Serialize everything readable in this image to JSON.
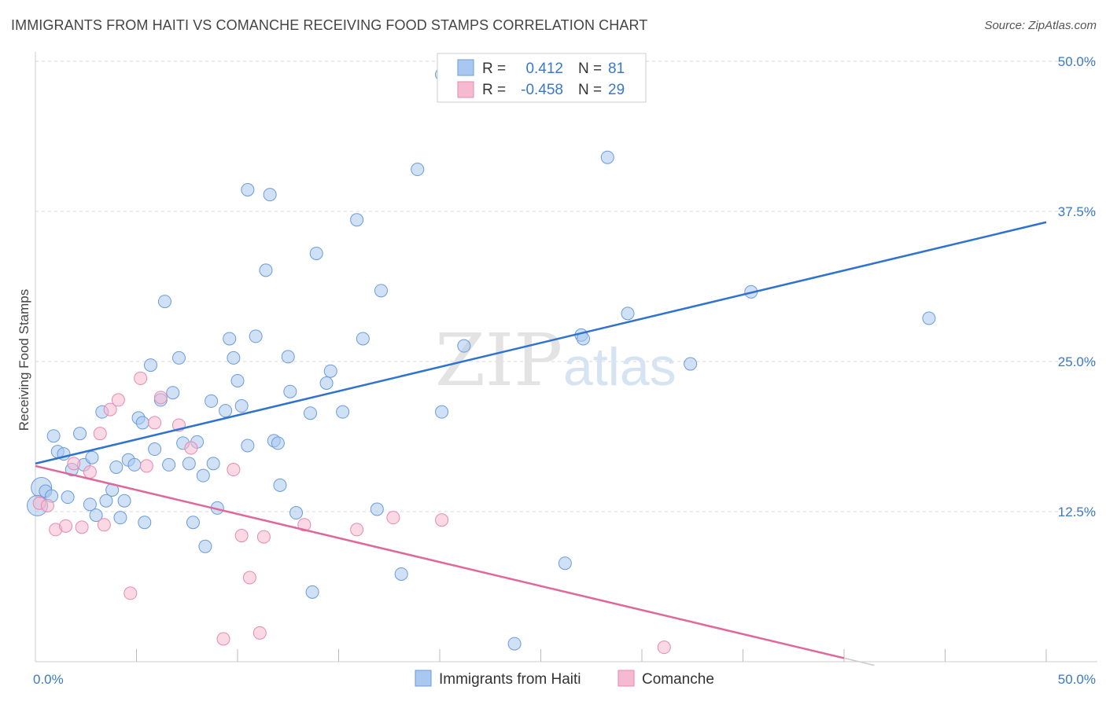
{
  "title": "IMMIGRANTS FROM HAITI VS COMANCHE RECEIVING FOOD STAMPS CORRELATION CHART",
  "source": "Source: ZipAtlas.com",
  "watermark": {
    "zip": "ZIP",
    "atlas": "atlas"
  },
  "colors": {
    "blue": "#4f86d0",
    "blue_fill": "#a9c8ef",
    "blue_line": "#2f72d0",
    "pink": "#e0679a",
    "pink_fill": "#f6bad0",
    "pink_line": "#e0679a",
    "axis_text": "#3a78c9",
    "grid": "#d9d9d9"
  },
  "legend": {
    "r_label": "R =",
    "n_label": "N =",
    "rows": [
      {
        "series": "blue",
        "r": "0.412",
        "n": "81"
      },
      {
        "series": "pink",
        "r": "-0.458",
        "n": "29"
      }
    ]
  },
  "bottom_legend": [
    {
      "series": "blue",
      "label": "Immigrants from Haiti"
    },
    {
      "series": "pink",
      "label": "Comanche"
    }
  ],
  "chart_data": {
    "type": "scatter",
    "title": "IMMIGRANTS FROM HAITI VS COMANCHE RECEIVING FOOD STAMPS CORRELATION CHART",
    "xlabel": "",
    "ylabel": "Receiving Food Stamps",
    "xlim": [
      0,
      50
    ],
    "ylim": [
      0,
      50
    ],
    "x_tick_labels": [
      "0.0%",
      "50.0%"
    ],
    "y_ticks": [
      12.5,
      25.0,
      37.5,
      50.0
    ],
    "y_tick_labels": [
      "12.5%",
      "25.0%",
      "37.5%",
      "50.0%"
    ],
    "grid": true,
    "series": [
      {
        "name": "Immigrants from Haiti",
        "color": "blue",
        "r": 0.412,
        "n": 81,
        "trend": {
          "x": [
            0,
            50
          ],
          "y": [
            16.5,
            36.6
          ]
        },
        "points": [
          [
            0.3,
            14.5
          ],
          [
            0.5,
            14.2
          ],
          [
            0.8,
            13.8
          ],
          [
            0.9,
            18.8
          ],
          [
            1.1,
            17.5
          ],
          [
            1.4,
            17.3
          ],
          [
            1.6,
            13.7
          ],
          [
            1.8,
            16.0
          ],
          [
            2.2,
            19.0
          ],
          [
            2.4,
            16.4
          ],
          [
            2.7,
            13.1
          ],
          [
            2.8,
            17.0
          ],
          [
            3.0,
            12.2
          ],
          [
            3.3,
            20.8
          ],
          [
            3.5,
            13.4
          ],
          [
            3.8,
            14.3
          ],
          [
            4.0,
            16.2
          ],
          [
            4.2,
            12.0
          ],
          [
            4.4,
            13.4
          ],
          [
            4.6,
            16.8
          ],
          [
            4.9,
            16.4
          ],
          [
            5.1,
            20.3
          ],
          [
            5.3,
            19.9
          ],
          [
            5.4,
            11.6
          ],
          [
            5.7,
            24.7
          ],
          [
            5.9,
            17.7
          ],
          [
            6.2,
            21.8
          ],
          [
            6.4,
            30.0
          ],
          [
            6.6,
            16.4
          ],
          [
            6.8,
            22.4
          ],
          [
            7.1,
            25.3
          ],
          [
            7.3,
            18.2
          ],
          [
            7.6,
            16.5
          ],
          [
            7.8,
            11.6
          ],
          [
            8.0,
            18.3
          ],
          [
            8.3,
            15.5
          ],
          [
            8.4,
            9.6
          ],
          [
            8.7,
            21.7
          ],
          [
            8.8,
            16.5
          ],
          [
            9.0,
            12.8
          ],
          [
            9.4,
            20.9
          ],
          [
            9.6,
            26.9
          ],
          [
            9.8,
            25.3
          ],
          [
            10.0,
            23.4
          ],
          [
            10.2,
            21.3
          ],
          [
            10.5,
            18.0
          ],
          [
            10.5,
            39.3
          ],
          [
            10.9,
            27.1
          ],
          [
            11.4,
            32.6
          ],
          [
            11.6,
            38.9
          ],
          [
            11.8,
            18.4
          ],
          [
            12.0,
            18.2
          ],
          [
            12.1,
            14.7
          ],
          [
            12.5,
            25.4
          ],
          [
            12.6,
            22.5
          ],
          [
            12.9,
            12.4
          ],
          [
            13.6,
            20.7
          ],
          [
            13.7,
            5.8
          ],
          [
            13.9,
            34.0
          ],
          [
            14.4,
            23.2
          ],
          [
            14.6,
            24.2
          ],
          [
            15.2,
            20.8
          ],
          [
            15.9,
            36.8
          ],
          [
            16.2,
            26.9
          ],
          [
            16.9,
            12.7
          ],
          [
            17.1,
            30.9
          ],
          [
            18.1,
            7.3
          ],
          [
            18.9,
            41.0
          ],
          [
            20.1,
            48.9
          ],
          [
            20.1,
            20.8
          ],
          [
            21.2,
            26.3
          ],
          [
            23.7,
            1.5
          ],
          [
            26.2,
            8.2
          ],
          [
            27.0,
            27.2
          ],
          [
            27.1,
            26.9
          ],
          [
            28.3,
            42.0
          ],
          [
            29.3,
            29.0
          ],
          [
            32.4,
            24.8
          ],
          [
            35.4,
            30.8
          ],
          [
            44.2,
            28.6
          ],
          [
            0.1,
            13.0
          ]
        ]
      },
      {
        "name": "Comanche",
        "color": "pink",
        "r": -0.458,
        "n": 29,
        "trend": {
          "x": [
            0,
            40
          ],
          "y": [
            16.3,
            0.3
          ]
        },
        "points": [
          [
            0.2,
            13.2
          ],
          [
            0.6,
            13.0
          ],
          [
            1.0,
            11.0
          ],
          [
            1.5,
            11.3
          ],
          [
            1.9,
            16.5
          ],
          [
            2.3,
            11.2
          ],
          [
            2.7,
            15.8
          ],
          [
            3.2,
            19.0
          ],
          [
            3.4,
            11.4
          ],
          [
            3.7,
            21.0
          ],
          [
            4.1,
            21.8
          ],
          [
            4.7,
            5.7
          ],
          [
            5.2,
            23.6
          ],
          [
            5.5,
            16.3
          ],
          [
            5.9,
            19.9
          ],
          [
            6.2,
            22.0
          ],
          [
            7.1,
            19.7
          ],
          [
            7.7,
            17.8
          ],
          [
            9.3,
            1.9
          ],
          [
            9.8,
            16.0
          ],
          [
            10.2,
            10.5
          ],
          [
            10.6,
            7.0
          ],
          [
            11.1,
            2.4
          ],
          [
            11.3,
            10.4
          ],
          [
            13.3,
            11.4
          ],
          [
            15.9,
            11.0
          ],
          [
            17.7,
            12.0
          ],
          [
            20.1,
            11.8
          ],
          [
            31.1,
            1.2
          ]
        ]
      }
    ]
  }
}
